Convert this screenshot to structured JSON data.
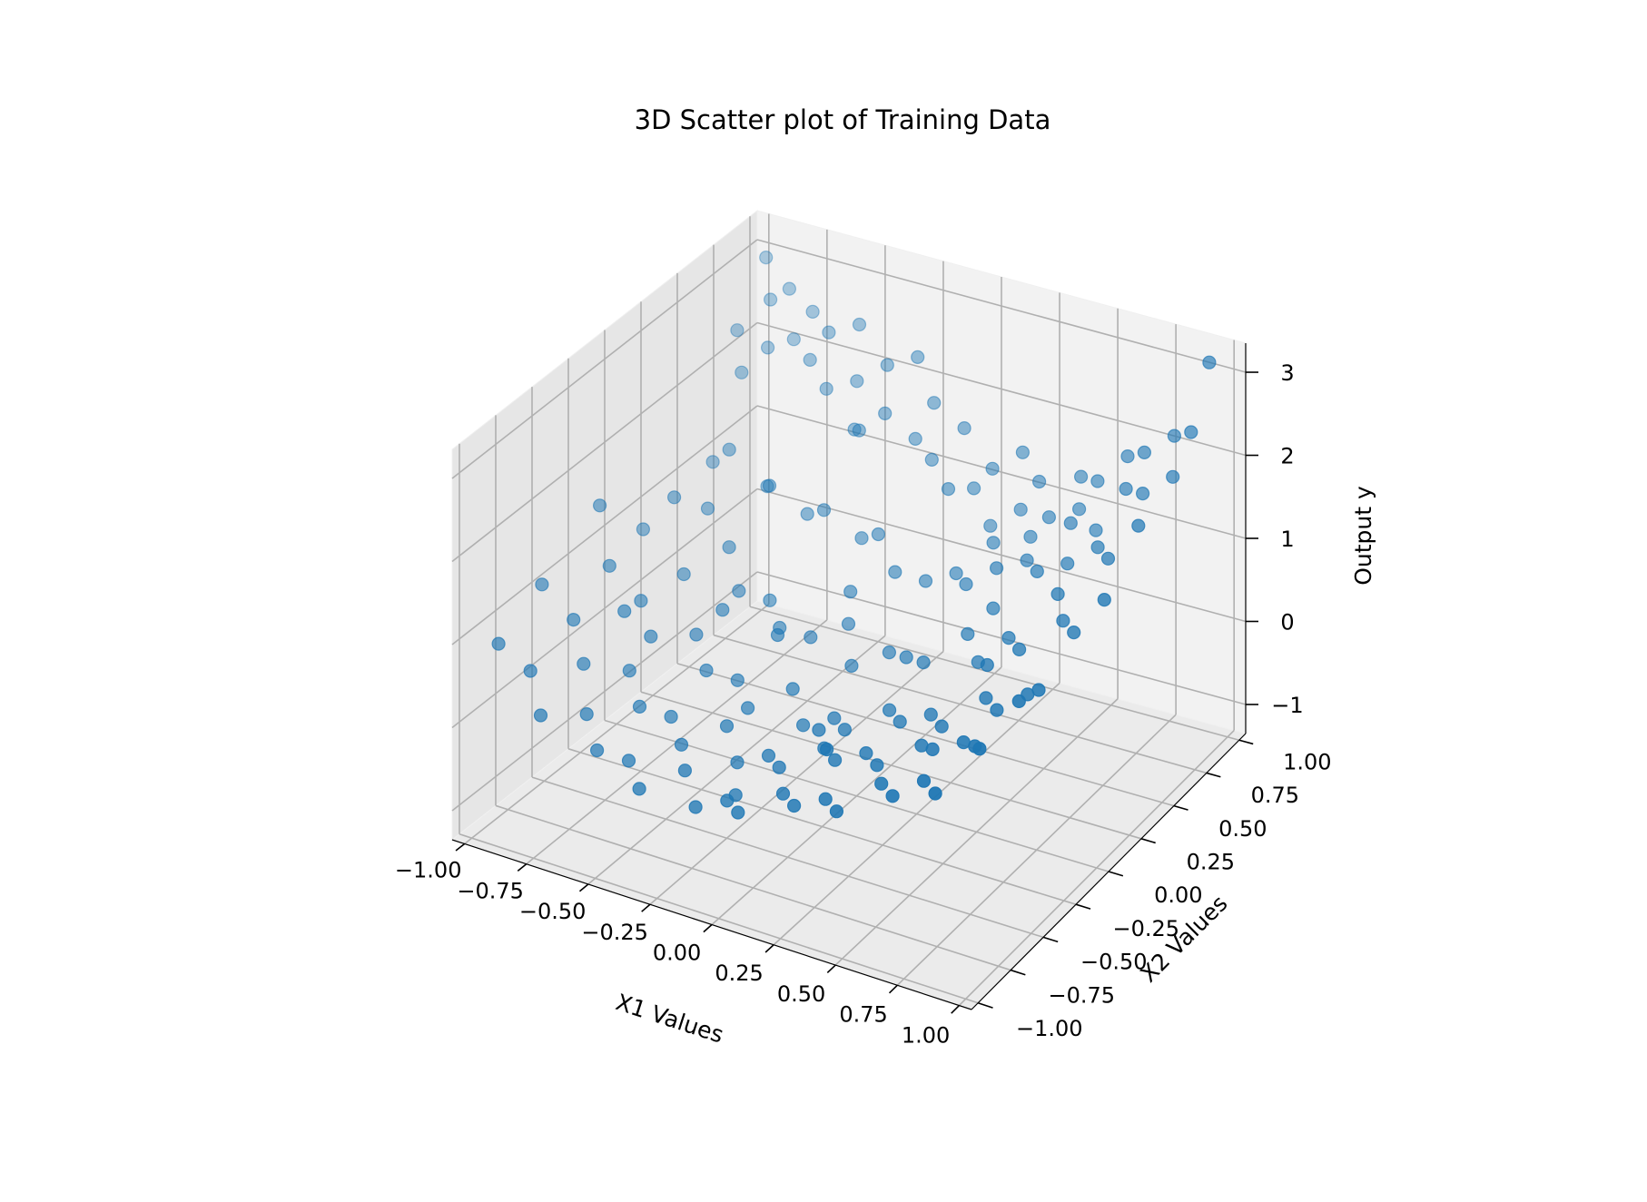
{
  "chart_data": {
    "type": "scatter",
    "projection": "3d",
    "title": "3D Scatter plot of Training Data",
    "xlabel": "X1 Values",
    "ylabel": "X2 Values",
    "zlabel": "Output y",
    "xlim": [
      -1.05,
      1.05
    ],
    "ylim": [
      -1.05,
      1.05
    ],
    "zlim": [
      -1.35,
      3.35
    ],
    "x_ticks": [
      -1.0,
      -0.75,
      -0.5,
      -0.25,
      0.0,
      0.25,
      0.5,
      0.75,
      1.0
    ],
    "x_tick_labels": [
      "−1.00",
      "−0.75",
      "−0.50",
      "−0.25",
      "0.00",
      "0.25",
      "0.50",
      "0.75",
      "1.00"
    ],
    "y_ticks": [
      -1.0,
      -0.75,
      -0.5,
      -0.25,
      0.0,
      0.25,
      0.5,
      0.75,
      1.0
    ],
    "y_tick_labels": [
      "−1.00",
      "−0.75",
      "−0.50",
      "−0.25",
      "0.00",
      "0.25",
      "0.50",
      "0.75",
      "1.00"
    ],
    "z_ticks": [
      -1,
      0,
      1,
      2,
      3
    ],
    "z_tick_labels": [
      "−1",
      "0",
      "1",
      "2",
      "3"
    ],
    "grid": true,
    "marker_color": "#1f77b4",
    "depth_shade": true,
    "series": [
      {
        "points": [
          [
            -0.95,
            0.95,
            3.0
          ],
          [
            -0.9,
            0.9,
            2.6
          ],
          [
            -0.85,
            0.95,
            2.7
          ],
          [
            -0.8,
            0.9,
            2.2
          ],
          [
            -0.75,
            0.95,
            2.5
          ],
          [
            -0.95,
            0.75,
            2.4
          ],
          [
            -0.9,
            0.7,
            2.0
          ],
          [
            -0.85,
            0.8,
            2.2
          ],
          [
            -0.7,
            0.85,
            2.1
          ],
          [
            -0.65,
            0.9,
            2.4
          ],
          [
            -0.6,
            0.8,
            1.9
          ],
          [
            -0.55,
            0.95,
            2.5
          ],
          [
            -0.5,
            0.85,
            2.0
          ],
          [
            -0.45,
            0.75,
            1.6
          ],
          [
            -0.4,
            0.9,
            2.2
          ],
          [
            -0.35,
            0.8,
            1.8
          ],
          [
            -0.3,
            0.95,
            2.3
          ],
          [
            -0.25,
            0.85,
            1.5
          ],
          [
            -0.2,
            0.9,
            1.9
          ],
          [
            -0.15,
            0.8,
            1.4
          ],
          [
            -0.1,
            0.95,
            1.6
          ],
          [
            -0.05,
            0.75,
            1.2
          ],
          [
            0.0,
            0.85,
            1.1
          ],
          [
            0.05,
            0.9,
            1.3
          ],
          [
            0.1,
            0.8,
            0.8
          ],
          [
            0.15,
            0.95,
            1.5
          ],
          [
            0.2,
            0.85,
            1.0
          ],
          [
            0.25,
            0.9,
            1.3
          ],
          [
            0.3,
            0.75,
            0.9
          ],
          [
            0.35,
            0.8,
            1.1
          ],
          [
            0.4,
            0.95,
            1.4
          ],
          [
            0.45,
            0.85,
            1.2
          ],
          [
            0.5,
            0.9,
            1.5
          ],
          [
            0.55,
            0.8,
            1.1
          ],
          [
            0.6,
            0.95,
            1.8
          ],
          [
            0.65,
            0.85,
            1.6
          ],
          [
            0.7,
            0.9,
            2.0
          ],
          [
            0.75,
            0.8,
            1.7
          ],
          [
            0.8,
            0.95,
            2.2
          ],
          [
            0.85,
            0.85,
            1.9
          ],
          [
            0.9,
            0.9,
            2.4
          ],
          [
            0.95,
            0.95,
            3.2
          ],
          [
            -0.9,
            0.5,
            1.2
          ],
          [
            -0.8,
            0.45,
            1.5
          ],
          [
            -0.7,
            0.55,
            1.0
          ],
          [
            -0.6,
            0.4,
            1.3
          ],
          [
            -0.5,
            0.5,
            0.9
          ],
          [
            -0.4,
            0.45,
            1.1
          ],
          [
            -0.3,
            0.55,
            0.7
          ],
          [
            -0.2,
            0.5,
            0.9
          ],
          [
            -0.1,
            0.45,
            0.6
          ],
          [
            0.0,
            0.5,
            0.5
          ],
          [
            0.1,
            0.55,
            0.6
          ],
          [
            0.2,
            0.45,
            0.7
          ],
          [
            0.3,
            0.5,
            0.9
          ],
          [
            0.4,
            0.55,
            1.0
          ],
          [
            0.5,
            0.45,
            1.1
          ],
          [
            0.6,
            0.5,
            1.2
          ],
          [
            0.7,
            0.55,
            1.4
          ],
          [
            0.8,
            0.45,
            1.5
          ],
          [
            0.9,
            0.5,
            1.9
          ],
          [
            -0.95,
            0.1,
            0.9
          ],
          [
            -0.85,
            0.15,
            1.3
          ],
          [
            -0.75,
            0.05,
            0.6
          ],
          [
            -0.65,
            0.2,
            0.8
          ],
          [
            -0.55,
            0.1,
            0.5
          ],
          [
            -0.45,
            0.15,
            0.4
          ],
          [
            -0.35,
            0.05,
            0.3
          ],
          [
            -0.25,
            0.1,
            0.2
          ],
          [
            -0.15,
            0.2,
            0.3
          ],
          [
            -0.05,
            0.05,
            0.1
          ],
          [
            0.05,
            0.15,
            0.2
          ],
          [
            0.15,
            0.1,
            0.3
          ],
          [
            0.25,
            0.05,
            0.4
          ],
          [
            0.35,
            0.2,
            0.6
          ],
          [
            0.45,
            0.1,
            0.5
          ],
          [
            0.55,
            0.15,
            0.8
          ],
          [
            0.65,
            0.05,
            0.9
          ],
          [
            0.75,
            0.2,
            1.1
          ],
          [
            0.85,
            0.1,
            1.2
          ],
          [
            0.95,
            0.15,
            1.6
          ],
          [
            -0.95,
            -0.2,
            1.6
          ],
          [
            -0.85,
            -0.3,
            1.1
          ],
          [
            -0.75,
            -0.25,
            0.7
          ],
          [
            -0.65,
            -0.35,
            0.5
          ],
          [
            -0.55,
            -0.2,
            0.4
          ],
          [
            -0.45,
            -0.3,
            0.2
          ],
          [
            -0.35,
            -0.25,
            0.1
          ],
          [
            -0.25,
            -0.35,
            0.0
          ],
          [
            -0.15,
            -0.2,
            0.1
          ],
          [
            -0.05,
            -0.3,
            -0.1
          ],
          [
            0.05,
            -0.25,
            0.0
          ],
          [
            0.15,
            -0.35,
            0.1
          ],
          [
            0.25,
            -0.2,
            0.2
          ],
          [
            0.35,
            -0.3,
            0.3
          ],
          [
            0.45,
            -0.25,
            0.4
          ],
          [
            0.55,
            -0.35,
            0.5
          ],
          [
            0.65,
            -0.2,
            0.7
          ],
          [
            0.75,
            -0.3,
            0.8
          ],
          [
            0.85,
            -0.25,
            1.0
          ],
          [
            0.95,
            -0.35,
            1.3
          ],
          [
            -0.95,
            -0.6,
            1.2
          ],
          [
            -0.85,
            -0.55,
            0.8
          ],
          [
            -0.75,
            -0.65,
            0.5
          ],
          [
            -0.65,
            -0.5,
            0.3
          ],
          [
            -0.55,
            -0.6,
            0.1
          ],
          [
            -0.45,
            -0.55,
            0.0
          ],
          [
            -0.35,
            -0.65,
            -0.1
          ],
          [
            -0.25,
            -0.5,
            0.0
          ],
          [
            -0.15,
            -0.6,
            -0.2
          ],
          [
            -0.05,
            -0.55,
            -0.1
          ],
          [
            0.05,
            -0.65,
            0.0
          ],
          [
            0.15,
            -0.5,
            0.1
          ],
          [
            0.25,
            -0.6,
            0.2
          ],
          [
            0.35,
            -0.55,
            0.3
          ],
          [
            0.45,
            -0.65,
            0.4
          ],
          [
            0.55,
            -0.5,
            0.5
          ],
          [
            0.65,
            -0.6,
            0.7
          ],
          [
            0.75,
            -0.55,
            0.8
          ],
          [
            0.85,
            -0.65,
            1.0
          ],
          [
            0.95,
            -0.5,
            1.4
          ],
          [
            -0.95,
            -0.9,
            0.9
          ],
          [
            -0.85,
            -0.85,
            0.6
          ],
          [
            -0.75,
            -0.95,
            0.3
          ],
          [
            -0.65,
            -0.8,
            0.2
          ],
          [
            -0.55,
            -0.9,
            0.0
          ],
          [
            -0.45,
            -0.85,
            -0.1
          ],
          [
            -0.35,
            -0.95,
            -0.2
          ],
          [
            -0.25,
            -0.8,
            -0.1
          ],
          [
            -0.15,
            -0.9,
            -0.3
          ],
          [
            -0.05,
            -0.85,
            -0.2
          ],
          [
            0.05,
            -0.95,
            -0.1
          ],
          [
            0.15,
            -0.8,
            0.0
          ],
          [
            0.25,
            -0.9,
            0.1
          ],
          [
            0.35,
            -0.85,
            0.2
          ],
          [
            0.45,
            -0.95,
            0.3
          ],
          [
            0.55,
            -0.8,
            0.5
          ],
          [
            0.65,
            -0.9,
            0.6
          ],
          [
            0.75,
            -0.85,
            0.8
          ],
          [
            0.85,
            -0.95,
            0.9
          ],
          [
            0.95,
            -0.8,
            1.3
          ],
          [
            -0.5,
            -0.1,
            0.6
          ],
          [
            -0.2,
            0.3,
            0.5
          ],
          [
            0.1,
            -0.45,
            0.2
          ],
          [
            0.4,
            0.3,
            0.8
          ],
          [
            0.6,
            -0.1,
            0.9
          ],
          [
            -0.7,
            -0.45,
            0.9
          ],
          [
            0.3,
            -0.75,
            0.6
          ],
          [
            -0.4,
            0.7,
            1.7
          ],
          [
            0.2,
            0.65,
            0.9
          ],
          [
            -0.1,
            -0.7,
            -0.4
          ],
          [
            0.7,
            0.25,
            1.3
          ],
          [
            -0.8,
            0.3,
            1.0
          ],
          [
            0.5,
            0.7,
            1.3
          ],
          [
            -0.3,
            -0.05,
            0.4
          ]
        ]
      }
    ]
  }
}
